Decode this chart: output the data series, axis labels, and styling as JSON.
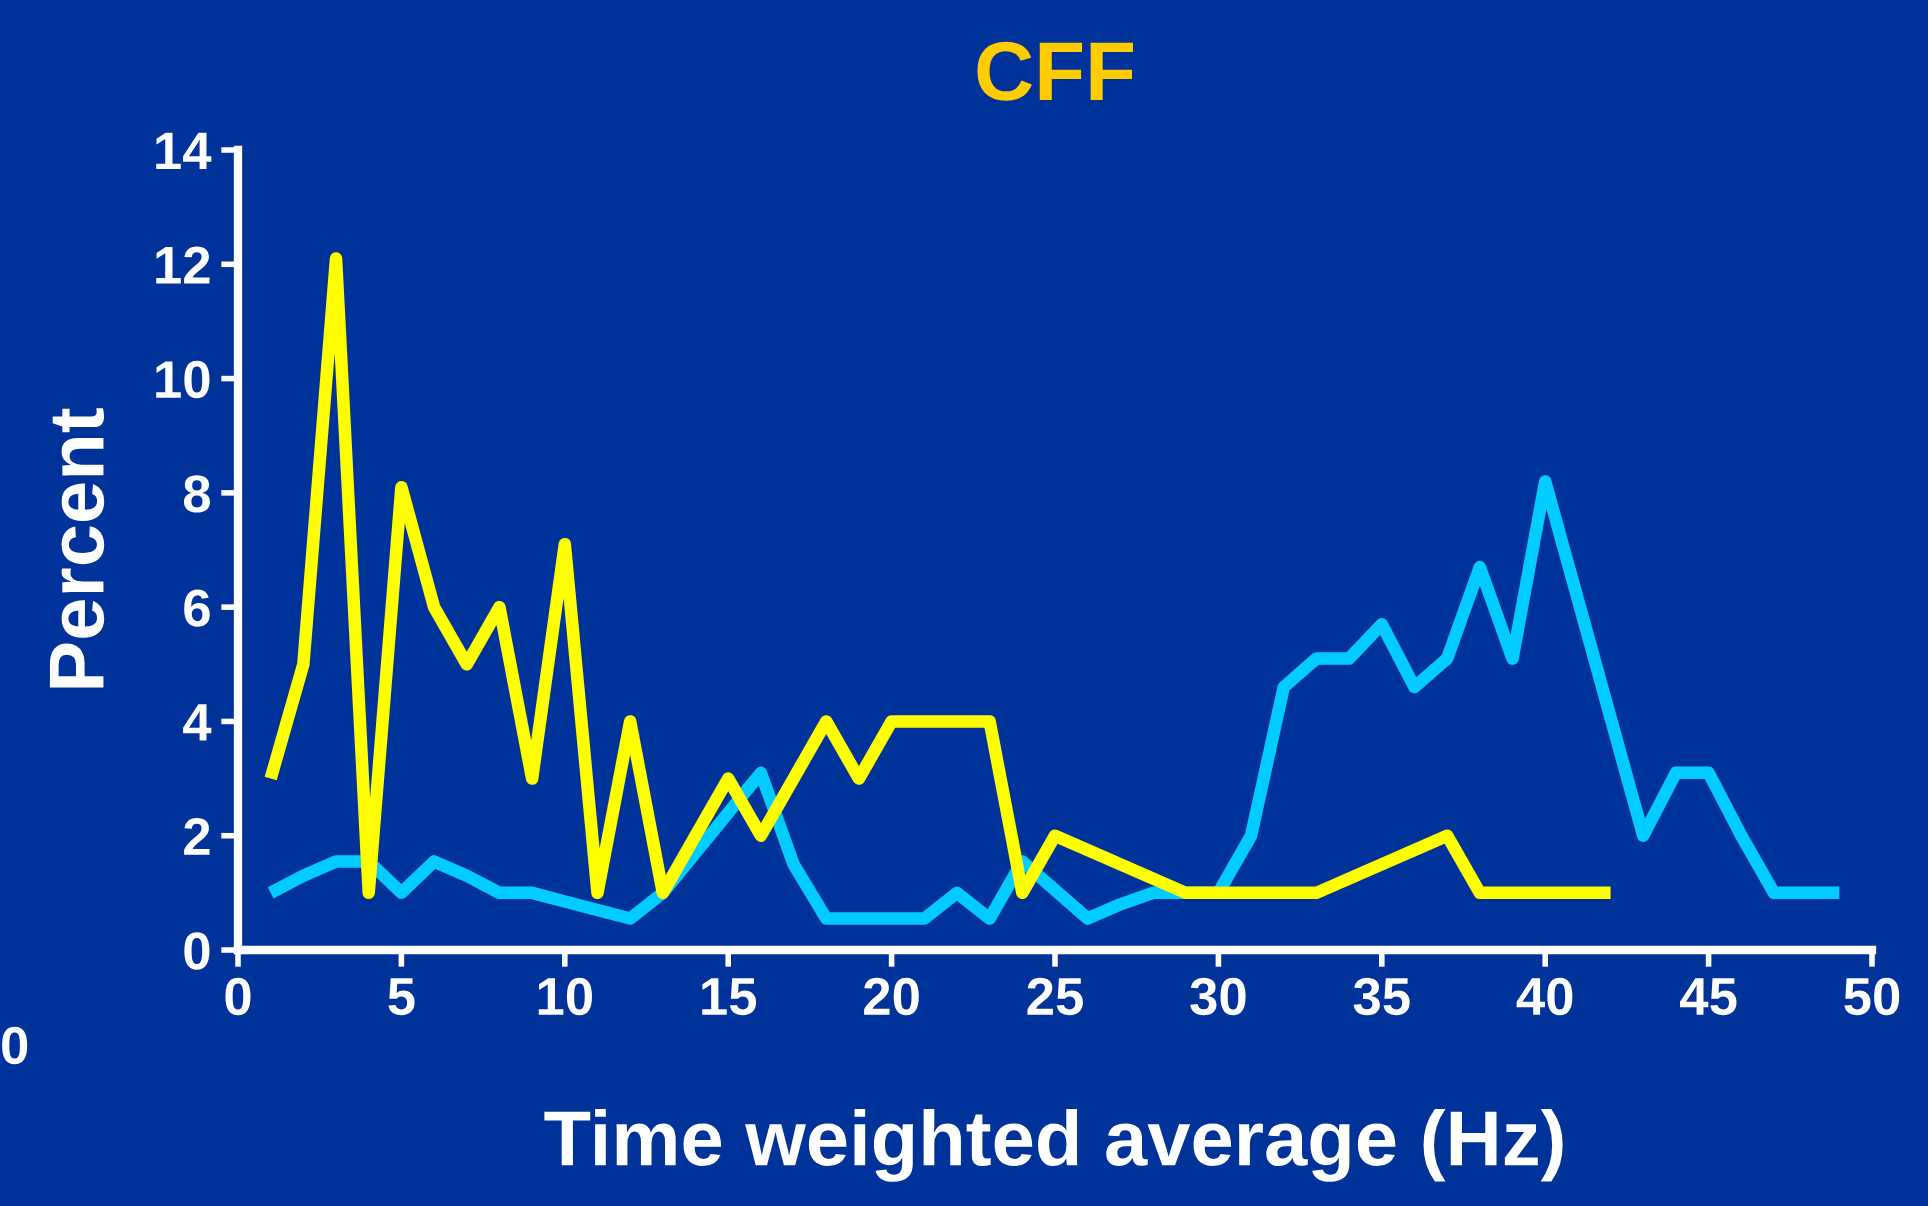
{
  "chart_data": {
    "type": "line",
    "title": "CFF",
    "xlabel": "Time weighted average (Hz)",
    "ylabel": "Percent",
    "xlim": [
      0,
      50
    ],
    "xticks": [
      0,
      5,
      10,
      15,
      20,
      25,
      30,
      35,
      40,
      45,
      50
    ],
    "ylim": [
      0,
      14
    ],
    "yticks": [
      0,
      2,
      4,
      6,
      8,
      10,
      12,
      14
    ],
    "grid": false,
    "legend": false,
    "marker": "none",
    "line_style": "solid",
    "annotations": [
      "0"
    ],
    "series": [
      {
        "color": "#00ccff",
        "x": [
          1,
          2,
          3,
          4,
          5,
          6,
          7,
          8,
          9,
          10,
          11,
          12,
          13,
          14,
          15,
          16,
          17,
          18,
          19,
          20,
          21,
          22,
          23,
          24,
          25,
          26,
          27,
          28,
          29,
          30,
          31,
          32,
          33,
          34,
          35,
          36,
          37,
          38,
          39,
          40,
          43,
          44,
          45,
          46,
          47,
          48,
          49
        ],
        "values": [
          1,
          1.3,
          1.55,
          1.55,
          1,
          1.55,
          1.3,
          1,
          1,
          0.85,
          0.7,
          0.55,
          1,
          1.7,
          2.4,
          3.1,
          1.5,
          0.55,
          0.55,
          0.55,
          0.55,
          1,
          0.55,
          1.55,
          1.05,
          0.55,
          0.8,
          1,
          1,
          1,
          2,
          4.6,
          5.1,
          5.1,
          5.7,
          4.6,
          5.1,
          6.7,
          5.1,
          8.2,
          2,
          3.1,
          3.1,
          2,
          1,
          1,
          1
        ]
      },
      {
        "color": "#ffff00",
        "x": [
          1,
          2,
          3,
          4,
          5,
          6,
          7,
          8,
          9,
          10,
          11,
          12,
          13,
          14,
          15,
          16,
          17,
          18,
          19,
          20,
          21,
          22,
          23,
          24,
          25,
          29,
          30,
          31,
          32,
          33,
          37,
          38,
          39,
          40,
          41,
          42
        ],
        "values": [
          3,
          5,
          12.1,
          1,
          8.1,
          6,
          5,
          6,
          3,
          7.1,
          1,
          4,
          1,
          2,
          3,
          2,
          3,
          4,
          3,
          4,
          4,
          4,
          4,
          1,
          2,
          1,
          1,
          1,
          1,
          1,
          2,
          1,
          1,
          1,
          1,
          1
        ]
      }
    ]
  }
}
